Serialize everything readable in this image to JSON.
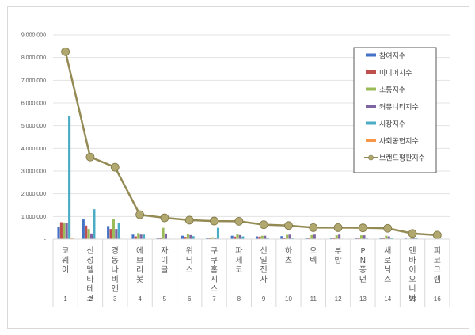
{
  "chart_data": {
    "type": "bar",
    "title": "",
    "xlabel": "",
    "ylabel": "",
    "ylim": [
      0,
      9000000
    ],
    "y_ticks": [
      "-",
      "1,000,000",
      "2,000,000",
      "3,000,000",
      "4,000,000",
      "5,000,000",
      "6,000,000",
      "7,000,000",
      "8,000,000",
      "9,000,000"
    ],
    "grid": true,
    "legend_position": "upper-right",
    "rank_labels": [
      "1",
      "2",
      "3",
      "4",
      "5",
      "6",
      "7",
      "8",
      "9",
      "10",
      "11",
      "12",
      "13",
      "14",
      "15",
      "16"
    ],
    "categories": [
      "코웨이",
      "신성델타테크",
      "경동나비엔",
      "에브리봇",
      "자이글",
      "위닉스",
      "쿠쿠홈시스",
      "파세코",
      "신일전자",
      "하츠",
      "오텍",
      "부방",
      "PN풍년",
      "새로닉스",
      "엔바이오니아",
      "피코그램"
    ],
    "series": [
      {
        "name": "참여지수",
        "type": "bar",
        "color": "#4472C4",
        "values": [
          550000,
          870000,
          580000,
          200000,
          50000,
          150000,
          60000,
          150000,
          120000,
          130000,
          40000,
          50000,
          40000,
          60000,
          30000,
          10000
        ]
      },
      {
        "name": "미디어지수",
        "type": "bar",
        "color": "#C0504D",
        "values": [
          750000,
          600000,
          450000,
          120000,
          40000,
          100000,
          50000,
          110000,
          110000,
          60000,
          50000,
          40000,
          40000,
          40000,
          20000,
          10000
        ]
      },
      {
        "name": "소통지수",
        "type": "bar",
        "color": "#9BBB59",
        "values": [
          720000,
          450000,
          870000,
          270000,
          500000,
          220000,
          80000,
          210000,
          150000,
          190000,
          180000,
          170000,
          170000,
          150000,
          60000,
          20000
        ]
      },
      {
        "name": "커뮤니티지수",
        "type": "bar",
        "color": "#8064A2",
        "values": [
          730000,
          250000,
          450000,
          200000,
          250000,
          180000,
          60000,
          180000,
          150000,
          200000,
          200000,
          200000,
          170000,
          120000,
          60000,
          20000
        ]
      },
      {
        "name": "시장지수",
        "type": "bar",
        "color": "#4BACC6",
        "values": [
          5420000,
          1320000,
          730000,
          200000,
          20000,
          130000,
          500000,
          120000,
          60000,
          30000,
          10000,
          20000,
          30000,
          50000,
          70000,
          20000
        ]
      },
      {
        "name": "사회공헌지수",
        "type": "bar",
        "color": "#F79646",
        "values": [
          50000,
          20000,
          20000,
          10000,
          10000,
          10000,
          10000,
          10000,
          10000,
          10000,
          10000,
          10000,
          10000,
          10000,
          10000,
          10000
        ]
      },
      {
        "name": "브랜드평판지수",
        "type": "line",
        "color": "#948A54",
        "values": [
          8260000,
          3620000,
          3170000,
          1080000,
          940000,
          840000,
          800000,
          790000,
          640000,
          600000,
          510000,
          510000,
          500000,
          480000,
          250000,
          180000
        ]
      }
    ]
  }
}
